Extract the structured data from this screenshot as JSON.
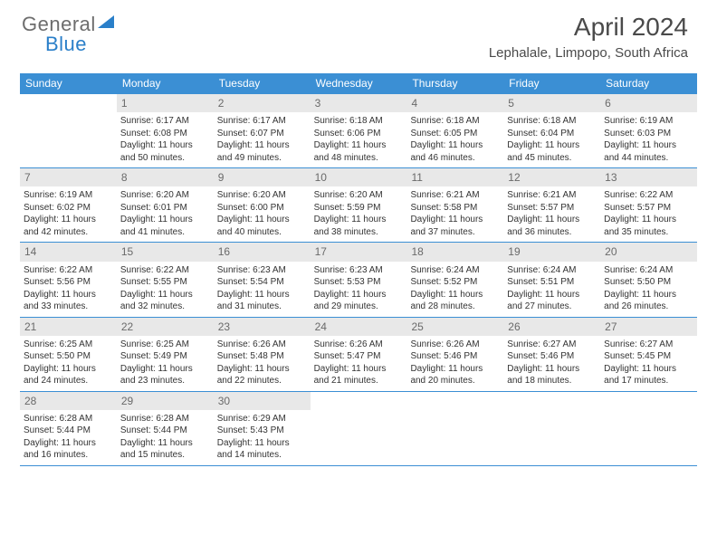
{
  "logo": {
    "text_left": "General",
    "text_right": "Blue"
  },
  "title": "April 2024",
  "location": "Lephalale, Limpopo, South Africa",
  "colors": {
    "header_bg": "#3b8fd4",
    "header_text": "#ffffff",
    "daynum_bg": "#e8e8e8",
    "daynum_text": "#6a6a6a",
    "body_text": "#333333",
    "logo_gray": "#6d6d6d",
    "logo_blue": "#2a7fc9",
    "rule": "#3b8fd4"
  },
  "day_names": [
    "Sunday",
    "Monday",
    "Tuesday",
    "Wednesday",
    "Thursday",
    "Friday",
    "Saturday"
  ],
  "weeks": [
    [
      {
        "blank": true
      },
      {
        "n": "1",
        "sr": "6:17 AM",
        "ss": "6:08 PM",
        "dl": "11 hours and 50 minutes."
      },
      {
        "n": "2",
        "sr": "6:17 AM",
        "ss": "6:07 PM",
        "dl": "11 hours and 49 minutes."
      },
      {
        "n": "3",
        "sr": "6:18 AM",
        "ss": "6:06 PM",
        "dl": "11 hours and 48 minutes."
      },
      {
        "n": "4",
        "sr": "6:18 AM",
        "ss": "6:05 PM",
        "dl": "11 hours and 46 minutes."
      },
      {
        "n": "5",
        "sr": "6:18 AM",
        "ss": "6:04 PM",
        "dl": "11 hours and 45 minutes."
      },
      {
        "n": "6",
        "sr": "6:19 AM",
        "ss": "6:03 PM",
        "dl": "11 hours and 44 minutes."
      }
    ],
    [
      {
        "n": "7",
        "sr": "6:19 AM",
        "ss": "6:02 PM",
        "dl": "11 hours and 42 minutes."
      },
      {
        "n": "8",
        "sr": "6:20 AM",
        "ss": "6:01 PM",
        "dl": "11 hours and 41 minutes."
      },
      {
        "n": "9",
        "sr": "6:20 AM",
        "ss": "6:00 PM",
        "dl": "11 hours and 40 minutes."
      },
      {
        "n": "10",
        "sr": "6:20 AM",
        "ss": "5:59 PM",
        "dl": "11 hours and 38 minutes."
      },
      {
        "n": "11",
        "sr": "6:21 AM",
        "ss": "5:58 PM",
        "dl": "11 hours and 37 minutes."
      },
      {
        "n": "12",
        "sr": "6:21 AM",
        "ss": "5:57 PM",
        "dl": "11 hours and 36 minutes."
      },
      {
        "n": "13",
        "sr": "6:22 AM",
        "ss": "5:57 PM",
        "dl": "11 hours and 35 minutes."
      }
    ],
    [
      {
        "n": "14",
        "sr": "6:22 AM",
        "ss": "5:56 PM",
        "dl": "11 hours and 33 minutes."
      },
      {
        "n": "15",
        "sr": "6:22 AM",
        "ss": "5:55 PM",
        "dl": "11 hours and 32 minutes."
      },
      {
        "n": "16",
        "sr": "6:23 AM",
        "ss": "5:54 PM",
        "dl": "11 hours and 31 minutes."
      },
      {
        "n": "17",
        "sr": "6:23 AM",
        "ss": "5:53 PM",
        "dl": "11 hours and 29 minutes."
      },
      {
        "n": "18",
        "sr": "6:24 AM",
        "ss": "5:52 PM",
        "dl": "11 hours and 28 minutes."
      },
      {
        "n": "19",
        "sr": "6:24 AM",
        "ss": "5:51 PM",
        "dl": "11 hours and 27 minutes."
      },
      {
        "n": "20",
        "sr": "6:24 AM",
        "ss": "5:50 PM",
        "dl": "11 hours and 26 minutes."
      }
    ],
    [
      {
        "n": "21",
        "sr": "6:25 AM",
        "ss": "5:50 PM",
        "dl": "11 hours and 24 minutes."
      },
      {
        "n": "22",
        "sr": "6:25 AM",
        "ss": "5:49 PM",
        "dl": "11 hours and 23 minutes."
      },
      {
        "n": "23",
        "sr": "6:26 AM",
        "ss": "5:48 PM",
        "dl": "11 hours and 22 minutes."
      },
      {
        "n": "24",
        "sr": "6:26 AM",
        "ss": "5:47 PM",
        "dl": "11 hours and 21 minutes."
      },
      {
        "n": "25",
        "sr": "6:26 AM",
        "ss": "5:46 PM",
        "dl": "11 hours and 20 minutes."
      },
      {
        "n": "26",
        "sr": "6:27 AM",
        "ss": "5:46 PM",
        "dl": "11 hours and 18 minutes."
      },
      {
        "n": "27",
        "sr": "6:27 AM",
        "ss": "5:45 PM",
        "dl": "11 hours and 17 minutes."
      }
    ],
    [
      {
        "n": "28",
        "sr": "6:28 AM",
        "ss": "5:44 PM",
        "dl": "11 hours and 16 minutes."
      },
      {
        "n": "29",
        "sr": "6:28 AM",
        "ss": "5:44 PM",
        "dl": "11 hours and 15 minutes."
      },
      {
        "n": "30",
        "sr": "6:29 AM",
        "ss": "5:43 PM",
        "dl": "11 hours and 14 minutes."
      },
      {
        "blank": true
      },
      {
        "blank": true
      },
      {
        "blank": true
      },
      {
        "blank": true
      }
    ]
  ],
  "labels": {
    "sunrise": "Sunrise:",
    "sunset": "Sunset:",
    "daylight": "Daylight:"
  }
}
